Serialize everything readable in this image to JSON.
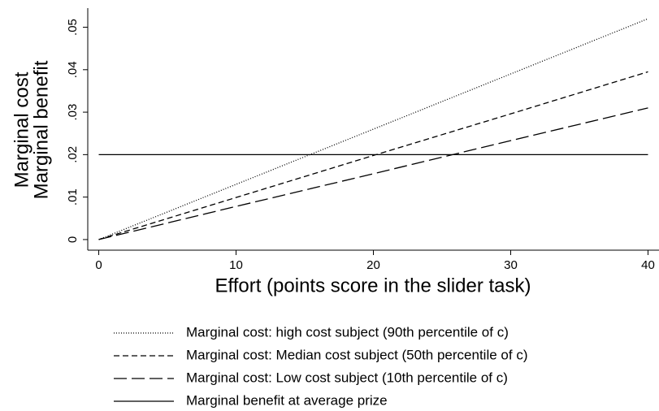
{
  "chart_data": {
    "type": "line",
    "xlabel": "Effort (points score in the slider task)",
    "ylabel": [
      "Marginal cost",
      "Marginal benefit"
    ],
    "x": [
      0,
      10,
      20,
      30,
      40
    ],
    "series": [
      {
        "name": "Marginal cost: high cost subject (90th percentile of c)",
        "color": "#000000",
        "style": "dotted",
        "values": [
          0,
          0.013,
          0.026,
          0.039,
          0.052
        ]
      },
      {
        "name": "Marginal cost: Median cost subject (50th percentile of c)",
        "color": "#000000",
        "style": "dashed",
        "values": [
          0,
          0.0099,
          0.0198,
          0.0296,
          0.0395
        ]
      },
      {
        "name": "Marginal cost: Low cost subject (10th percentile of c)",
        "color": "#000000",
        "style": "longdash",
        "values": [
          0,
          0.0078,
          0.0155,
          0.0233,
          0.031
        ]
      },
      {
        "name": "Marginal benefit at average prize",
        "color": "#000000",
        "style": "solid",
        "values": [
          0.02,
          0.02,
          0.02,
          0.02,
          0.02
        ]
      }
    ],
    "xlim": [
      -0.8,
      40.8
    ],
    "xticks": [
      0,
      10,
      20,
      30,
      40
    ],
    "ylim": [
      -0.0025,
      0.0545
    ],
    "yticks": [
      0,
      {
        "value": 0.01,
        "label": ".01"
      },
      {
        "value": 0.02,
        "label": ".02"
      },
      {
        "value": 0.03,
        "label": ".03"
      },
      {
        "value": 0.04,
        "label": ".04"
      },
      {
        "value": 0.05,
        "label": ".05"
      }
    ],
    "legend": "bottom"
  }
}
